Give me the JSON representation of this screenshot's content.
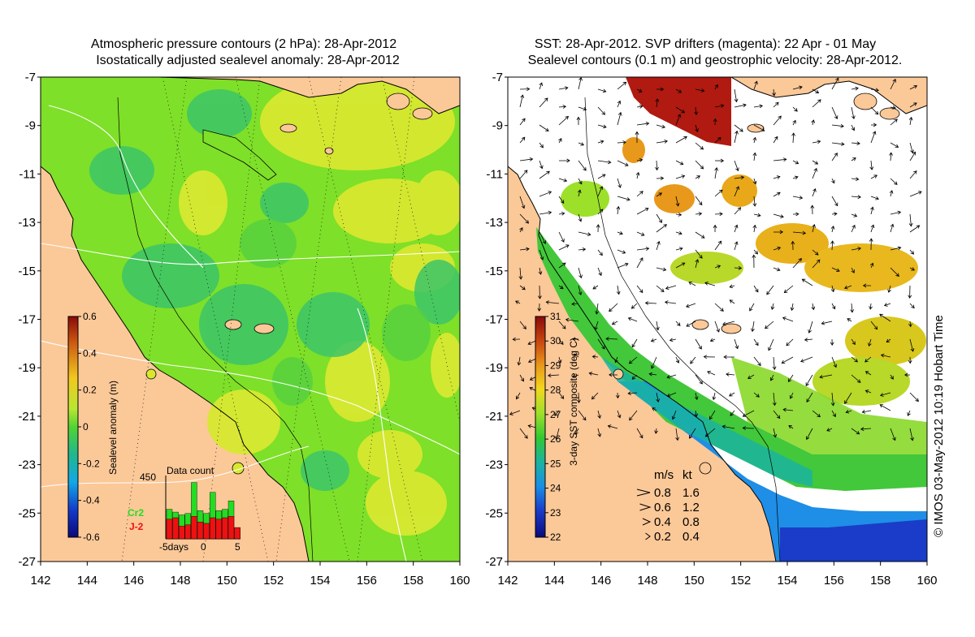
{
  "left_panel": {
    "title_line1": "Atmospheric pressure contours (2 hPa): 28-Apr-2012",
    "title_line2": "Isostatically adjusted sealevel anomaly: 28-Apr-2012",
    "colorbar_label": "Sealevel anomaly (m)",
    "colorbar_ticks": [
      "0.6",
      "0.4",
      "0.2",
      "0",
      "-0.2",
      "-0.4",
      "-0.6"
    ],
    "histogram": {
      "title": "Data count",
      "ymax_label": "450",
      "legend": [
        {
          "name": "Cr2",
          "color": "#22dd22"
        },
        {
          "name": "J-2",
          "color": "#ee1111"
        }
      ],
      "x_labels": [
        "-5days",
        "0",
        "5"
      ],
      "bins": [
        {
          "cr2": 210,
          "j2": 140
        },
        {
          "cr2": 190,
          "j2": 150
        },
        {
          "cr2": 170,
          "j2": 90
        },
        {
          "cr2": 180,
          "j2": 100
        },
        {
          "cr2": 400,
          "j2": 160
        },
        {
          "cr2": 200,
          "j2": 120
        },
        {
          "cr2": 180,
          "j2": 110
        },
        {
          "cr2": 330,
          "j2": 150
        },
        {
          "cr2": 200,
          "j2": 140
        },
        {
          "cr2": 210,
          "j2": 150
        },
        {
          "cr2": 270,
          "j2": 160
        },
        {
          "cr2": 80,
          "j2": 80
        }
      ]
    }
  },
  "right_panel": {
    "title_line1": "SST: 28-Apr-2012. SVP drifters (magenta): 22 Apr - 01 May",
    "title_line2": "Sealevel contours (0.1 m) and geostrophic velocity: 28-Apr-2012.",
    "colorbar_label": "3-day SST composite (deg C)",
    "colorbar_ticks": [
      "31",
      "30",
      "29",
      "28",
      "27",
      "26",
      "25",
      "24",
      "23",
      "22"
    ],
    "velocity_legend": {
      "header_ms": "m/s",
      "header_kt": "kt",
      "rows": [
        {
          "ms": "0.8",
          "kt": "1.6"
        },
        {
          "ms": "0.6",
          "kt": "1.2"
        },
        {
          "ms": "0.4",
          "kt": "0.8"
        },
        {
          "ms": "0.2",
          "kt": "0.4"
        }
      ]
    }
  },
  "axes": {
    "lat_labels": [
      "-7",
      "-9",
      "-11",
      "-13",
      "-15",
      "-17",
      "-19",
      "-21",
      "-23",
      "-25",
      "-27"
    ],
    "lon_labels": [
      "142",
      "144",
      "146",
      "148",
      "150",
      "152",
      "154",
      "156",
      "158",
      "160"
    ],
    "lon_range": [
      142,
      160
    ],
    "lat_range": [
      -27,
      -7
    ]
  },
  "credit": "© IMOS 03-May-2012 10:19 Hobart Time",
  "colors": {
    "land": "#fbc898",
    "ocean_green": "#7ee028",
    "ocean_yellow": "#d8e830",
    "ocean_teal": "#3cc468",
    "sst_white": "#ffffff"
  }
}
